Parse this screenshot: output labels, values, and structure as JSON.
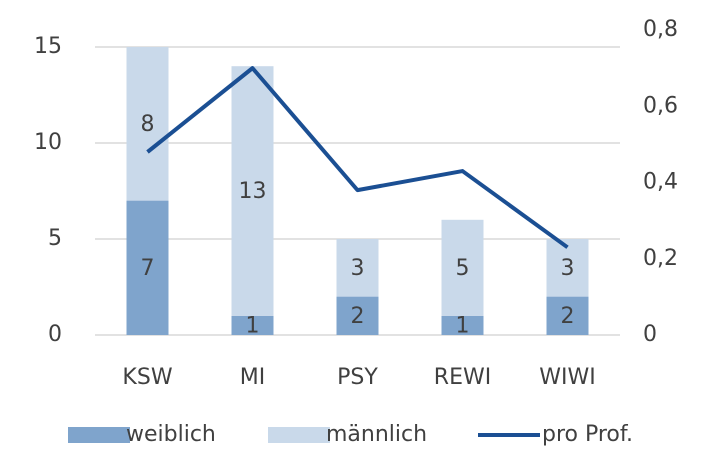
{
  "chart_data": {
    "type": "bar",
    "stacked": true,
    "categories": [
      "KSW",
      "MI",
      "PSY",
      "REWI",
      "WIWI"
    ],
    "series": [
      {
        "name": "weiblich",
        "color": "#7fa4cc",
        "values": [
          7,
          1,
          2,
          1,
          2
        ]
      },
      {
        "name": "männlich",
        "color": "#c9d9ea",
        "values": [
          8,
          13,
          3,
          5,
          3
        ]
      },
      {
        "name": "pro Prof.",
        "type": "line",
        "axis": "y2",
        "color": "#1b4f93",
        "values": [
          0.48,
          0.7,
          0.38,
          0.43,
          0.23
        ]
      }
    ],
    "ylim": [
      0,
      15
    ],
    "yticks": [
      0,
      5,
      10,
      15
    ],
    "y2lim": [
      0,
      0.8
    ],
    "y2ticks": [
      0,
      {
        "value": 0.2,
        "label": "0,2"
      },
      {
        "value": 0.4,
        "label": "0,4"
      },
      {
        "value": 0.6,
        "label": "0,6"
      },
      {
        "value": 0.8,
        "label": "0,8"
      }
    ],
    "grid": true,
    "legend": "bottom"
  }
}
